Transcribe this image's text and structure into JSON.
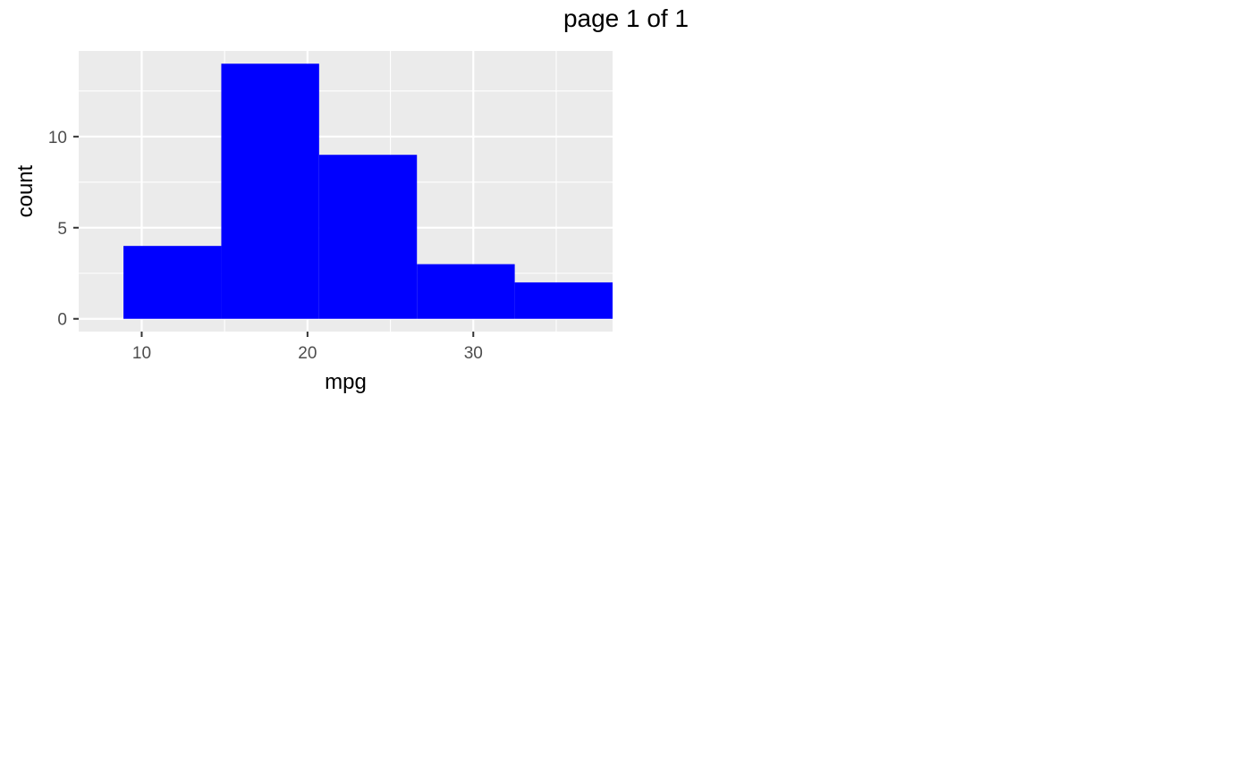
{
  "page_title": "page 1 of 1",
  "chart_data": {
    "type": "bar",
    "subtype": "histogram",
    "title": "",
    "xlabel": "mpg",
    "ylabel": "count",
    "bins": [
      {
        "x_start": 8.9,
        "x_end": 14.8,
        "count": 4
      },
      {
        "x_start": 14.8,
        "x_end": 20.7,
        "count": 14
      },
      {
        "x_start": 20.7,
        "x_end": 26.6,
        "count": 9
      },
      {
        "x_start": 26.6,
        "x_end": 32.5,
        "count": 3
      },
      {
        "x_start": 32.5,
        "x_end": 38.4,
        "count": 2
      }
    ],
    "xlim": [
      6.2,
      38.4
    ],
    "ylim": [
      -0.7,
      14.7
    ],
    "x_ticks": [
      10,
      20,
      30
    ],
    "x_tick_labels": [
      "10",
      "20",
      "30"
    ],
    "y_ticks": [
      0,
      5,
      10
    ],
    "y_tick_labels": [
      "0",
      "5",
      "10"
    ],
    "x_minor_ticks": [
      15,
      25,
      35
    ],
    "y_minor_ticks": [
      2.5,
      7.5,
      12.5
    ],
    "grid": true,
    "legend": "none",
    "colors": {
      "bar_fill": "#0000ff",
      "panel_background": "#ebebeb",
      "grid": "#ffffff",
      "tick_label": "#4d4d4d",
      "axis_tick": "#333333"
    }
  }
}
